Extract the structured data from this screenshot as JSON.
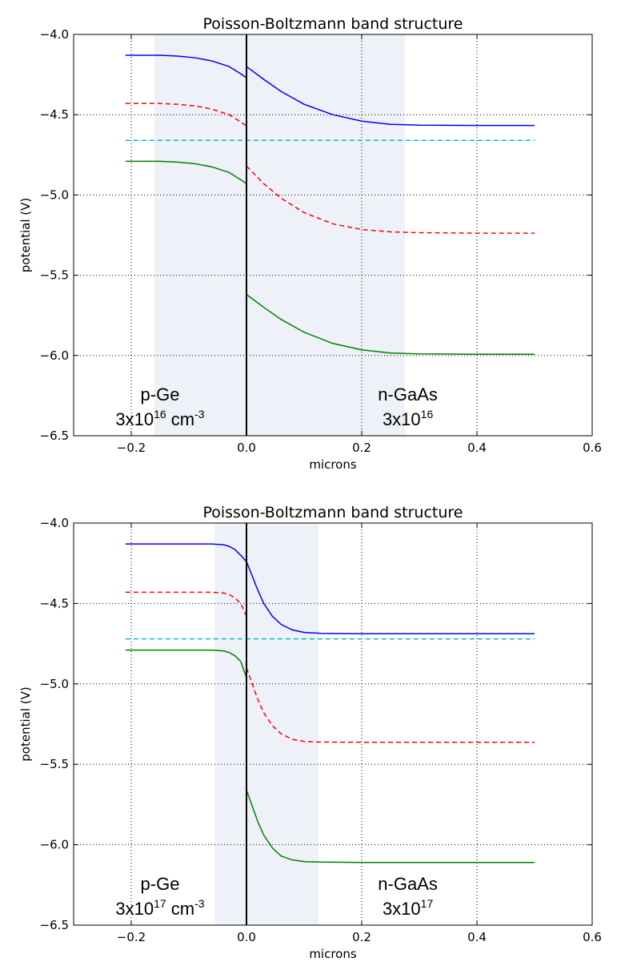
{
  "chart_data": [
    {
      "type": "line",
      "title": "Poisson-Boltzmann band structure",
      "xlabel": "microns",
      "ylabel": "potential (V)",
      "xlim": [
        -0.3,
        0.6
      ],
      "ylim": [
        -6.5,
        -4.0
      ],
      "xticks": [
        -0.2,
        0.0,
        0.2,
        0.4,
        0.6
      ],
      "xtick_labels": [
        "−0.2",
        "0.0",
        "0.2",
        "0.4",
        "0.6"
      ],
      "yticks": [
        -4.0,
        -4.5,
        -5.0,
        -5.5,
        -6.0,
        -6.5
      ],
      "ytick_labels": [
        "−4.0",
        "−4.5",
        "−5.0",
        "−5.5",
        "−6.0",
        "−6.5"
      ],
      "grid": true,
      "interface_x": 0.0,
      "depletion_region": [
        -0.16,
        0.275
      ],
      "left_label": {
        "name": "p-Ge",
        "base": "3x10",
        "exp": "16",
        "unit": " cm",
        "unit_exp": "-3"
      },
      "right_label": {
        "name": "n-GaAs",
        "base": "3x10",
        "exp": "16"
      },
      "series": [
        {
          "color": "#0000ff",
          "style": "solid",
          "x": [
            -0.21,
            -0.18,
            -0.15,
            -0.12,
            -0.09,
            -0.06,
            -0.03,
            -0.01,
            0.0
          ],
          "y": [
            -4.13,
            -4.13,
            -4.13,
            -4.135,
            -4.145,
            -4.165,
            -4.2,
            -4.245,
            -4.27
          ]
        },
        {
          "color": "#0000ff",
          "style": "solid",
          "x": [
            0.0,
            0.03,
            0.06,
            0.1,
            0.15,
            0.2,
            0.25,
            0.3,
            0.4,
            0.5
          ],
          "y": [
            -4.2,
            -4.28,
            -4.355,
            -4.435,
            -4.5,
            -4.54,
            -4.56,
            -4.565,
            -4.567,
            -4.567
          ]
        },
        {
          "color": "#ff0000",
          "style": "dashed",
          "x": [
            -0.21,
            -0.18,
            -0.15,
            -0.12,
            -0.09,
            -0.06,
            -0.03,
            -0.01,
            0.0
          ],
          "y": [
            -4.43,
            -4.43,
            -4.43,
            -4.435,
            -4.445,
            -4.465,
            -4.5,
            -4.545,
            -4.57
          ]
        },
        {
          "color": "#ff0000",
          "style": "dashed",
          "x": [
            0.0,
            0.03,
            0.06,
            0.1,
            0.15,
            0.2,
            0.25,
            0.3,
            0.4,
            0.5
          ],
          "y": [
            -4.82,
            -4.93,
            -5.02,
            -5.11,
            -5.18,
            -5.215,
            -5.23,
            -5.235,
            -5.238,
            -5.238
          ]
        },
        {
          "color": "#00bfbf",
          "style": "dashed",
          "x": [
            -0.21,
            0.5
          ],
          "y": [
            -4.66,
            -4.66
          ]
        },
        {
          "color": "#008000",
          "style": "solid",
          "x": [
            -0.21,
            -0.18,
            -0.15,
            -0.12,
            -0.09,
            -0.06,
            -0.03,
            -0.01,
            0.0
          ],
          "y": [
            -4.79,
            -4.79,
            -4.79,
            -4.795,
            -4.805,
            -4.825,
            -4.86,
            -4.905,
            -4.93
          ]
        },
        {
          "color": "#008000",
          "style": "solid",
          "x": [
            0.0,
            0.03,
            0.06,
            0.1,
            0.15,
            0.2,
            0.25,
            0.3,
            0.4,
            0.5
          ],
          "y": [
            -5.62,
            -5.7,
            -5.775,
            -5.855,
            -5.925,
            -5.965,
            -5.985,
            -5.99,
            -5.992,
            -5.992
          ]
        }
      ]
    },
    {
      "type": "line",
      "title": "Poisson-Boltzmann band structure",
      "xlabel": "microns",
      "ylabel": "potential (V)",
      "xlim": [
        -0.3,
        0.6
      ],
      "ylim": [
        -6.5,
        -4.0
      ],
      "xticks": [
        -0.2,
        0.0,
        0.2,
        0.4,
        0.6
      ],
      "xtick_labels": [
        "−0.2",
        "0.0",
        "0.2",
        "0.4",
        "0.6"
      ],
      "yticks": [
        -4.0,
        -4.5,
        -5.0,
        -5.5,
        -6.0,
        -6.5
      ],
      "ytick_labels": [
        "−4.0",
        "−4.5",
        "−5.0",
        "−5.5",
        "−6.0",
        "−6.5"
      ],
      "grid": true,
      "interface_x": 0.0,
      "depletion_region": [
        -0.055,
        0.125
      ],
      "left_label": {
        "name": "p-Ge",
        "base": "3x10",
        "exp": "17",
        "unit": " cm",
        "unit_exp": "-3"
      },
      "right_label": {
        "name": "n-GaAs",
        "base": "3x10",
        "exp": "17"
      },
      "series": [
        {
          "color": "#0000ff",
          "style": "solid",
          "x": [
            -0.21,
            -0.1,
            -0.06,
            -0.04,
            -0.03,
            -0.02,
            -0.01,
            0.0
          ],
          "y": [
            -4.13,
            -4.13,
            -4.13,
            -4.135,
            -4.145,
            -4.165,
            -4.2,
            -4.24
          ]
        },
        {
          "color": "#0000ff",
          "style": "solid",
          "x": [
            0.0,
            0.01,
            0.02,
            0.03,
            0.045,
            0.06,
            0.08,
            0.1,
            0.13,
            0.2,
            0.3,
            0.5
          ],
          "y": [
            -4.24,
            -4.33,
            -4.42,
            -4.5,
            -4.58,
            -4.63,
            -4.665,
            -4.68,
            -4.686,
            -4.688,
            -4.688,
            -4.688
          ]
        },
        {
          "color": "#ff0000",
          "style": "dashed",
          "x": [
            -0.21,
            -0.1,
            -0.06,
            -0.04,
            -0.03,
            -0.02,
            -0.01,
            0.0
          ],
          "y": [
            -4.43,
            -4.43,
            -4.43,
            -4.435,
            -4.445,
            -4.465,
            -4.5,
            -4.58
          ]
        },
        {
          "color": "#ff0000",
          "style": "dashed",
          "x": [
            0.0,
            0.01,
            0.02,
            0.03,
            0.045,
            0.06,
            0.08,
            0.1,
            0.13,
            0.2,
            0.3,
            0.5
          ],
          "y": [
            -4.9,
            -5.0,
            -5.1,
            -5.18,
            -5.26,
            -5.31,
            -5.345,
            -5.358,
            -5.362,
            -5.363,
            -5.363,
            -5.363
          ]
        },
        {
          "color": "#00bfbf",
          "style": "dashed",
          "x": [
            -0.21,
            0.5
          ],
          "y": [
            -4.72,
            -4.72
          ]
        },
        {
          "color": "#008000",
          "style": "solid",
          "x": [
            -0.21,
            -0.1,
            -0.06,
            -0.04,
            -0.03,
            -0.02,
            -0.01,
            0.0
          ],
          "y": [
            -4.79,
            -4.79,
            -4.79,
            -4.795,
            -4.805,
            -4.825,
            -4.86,
            -4.96
          ]
        },
        {
          "color": "#008000",
          "style": "solid",
          "x": [
            0.0,
            0.01,
            0.02,
            0.03,
            0.045,
            0.06,
            0.08,
            0.1,
            0.13,
            0.2,
            0.3,
            0.5
          ],
          "y": [
            -5.66,
            -5.76,
            -5.86,
            -5.94,
            -6.02,
            -6.07,
            -6.095,
            -6.105,
            -6.108,
            -6.11,
            -6.11,
            -6.11
          ]
        }
      ]
    }
  ]
}
